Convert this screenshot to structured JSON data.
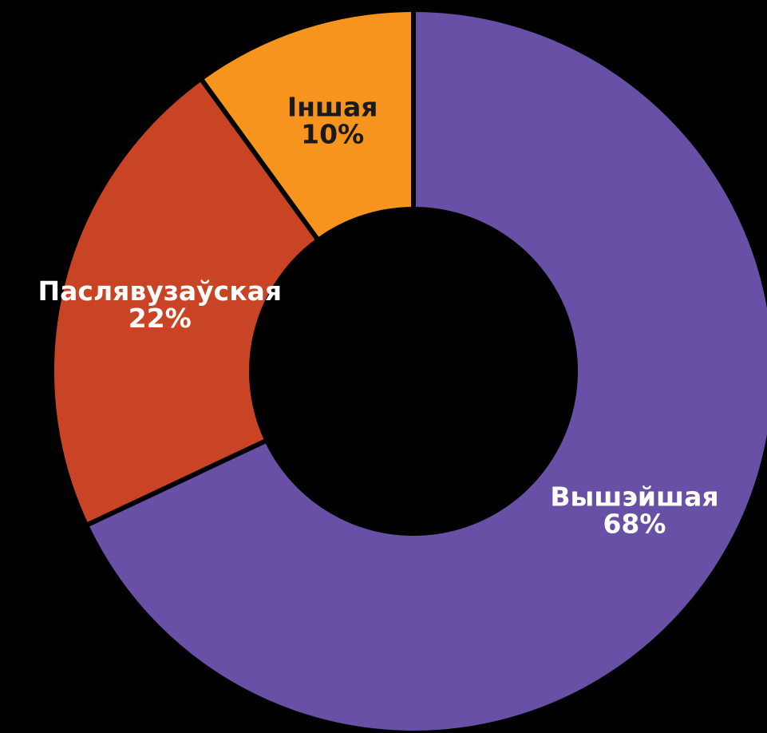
{
  "chart_data": {
    "type": "donut",
    "categories": [
      "Вышэйшая",
      "Паслявузаўская",
      "Іншая"
    ],
    "values": [
      68,
      22,
      10
    ],
    "value_labels": [
      "68%",
      "22%",
      "10%"
    ],
    "colors": [
      "#6750a6",
      "#c94424",
      "#f7941d"
    ],
    "label_colors": [
      "#ffffff",
      "#ffffff",
      "#1a1a1a"
    ]
  }
}
